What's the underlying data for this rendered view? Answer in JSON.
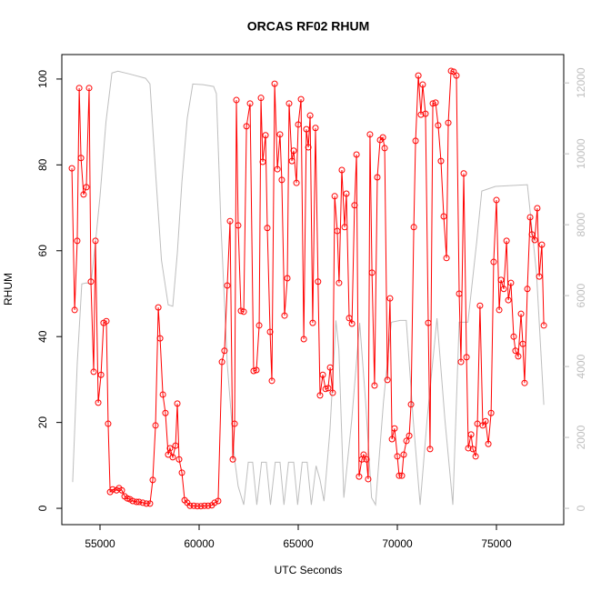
{
  "chart_data": {
    "type": "line",
    "title": "ORCAS RF02 RHUM",
    "xlabel": "UTC Seconds",
    "ylabel": "RHUM",
    "xlim": [
      53073,
      78394
    ],
    "ylim": [
      -3.8,
      105.7
    ],
    "y2lim": [
      -460,
      12800
    ],
    "xticks": [
      55000,
      60000,
      65000,
      70000,
      75000
    ],
    "yticks": [
      0,
      20,
      40,
      60,
      80,
      100
    ],
    "y2ticks": [
      0,
      2000,
      4000,
      6000,
      8000,
      10000,
      12000
    ],
    "series": [
      {
        "color": "#bebebe",
        "axis": "y2",
        "points": false,
        "x": [
          53620,
          53850,
          54080,
          54310,
          54540,
          54770,
          55000,
          55300,
          55600,
          55900,
          56500,
          57300,
          57520,
          57800,
          58100,
          58440,
          58670,
          58900,
          59130,
          59400,
          59680,
          60200,
          60730,
          60870,
          61100,
          61420,
          61790,
          61970,
          62250,
          62480,
          62700,
          62910,
          63150,
          63390,
          63600,
          63840,
          64080,
          64280,
          64510,
          64770,
          64970,
          65200,
          65450,
          65660,
          65900,
          66100,
          66300,
          66600,
          66900,
          67050,
          67300,
          67700,
          68100,
          68400,
          68700,
          68900,
          69300,
          69700,
          70140,
          70450,
          70800,
          71150,
          71500,
          72000,
          72400,
          72800,
          73120,
          73560,
          74000,
          74260,
          74950,
          76560,
          77020,
          77390
        ],
        "values": [
          740,
          4080,
          6330,
          6360,
          6330,
          7500,
          8800,
          10900,
          12280,
          12330,
          12250,
          12130,
          11970,
          9500,
          7000,
          5740,
          5700,
          7200,
          9200,
          11000,
          11970,
          11950,
          11900,
          11700,
          8000,
          4080,
          1380,
          620,
          100,
          1300,
          1300,
          100,
          1300,
          1300,
          100,
          1300,
          1300,
          100,
          1300,
          1300,
          100,
          1300,
          1300,
          100,
          1200,
          800,
          200,
          2200,
          5300,
          4500,
          300,
          2500,
          5230,
          3000,
          300,
          100,
          3000,
          5250,
          5300,
          5300,
          2500,
          100,
          2500,
          5360,
          2500,
          100,
          5250,
          5250,
          7500,
          8950,
          9080,
          9130,
          6640,
          2920
        ]
      },
      {
        "color": "#ff0000",
        "axis": "y",
        "points": true,
        "x": [
          53580,
          53720,
          53850,
          53950,
          54040,
          54170,
          54310,
          54450,
          54540,
          54680,
          54770,
          54910,
          55050,
          55180,
          55320,
          55410,
          55510,
          55640,
          55830,
          55960,
          56100,
          56240,
          56380,
          56510,
          56650,
          56840,
          56970,
          57160,
          57340,
          57520,
          57660,
          57800,
          57940,
          58030,
          58170,
          58300,
          58440,
          58530,
          58670,
          58810,
          58900,
          58990,
          59130,
          59270,
          59400,
          59540,
          59730,
          59910,
          60090,
          60270,
          60450,
          60640,
          60780,
          60960,
          61150,
          61280,
          61420,
          61560,
          61700,
          61790,
          61880,
          61970,
          62110,
          62250,
          62390,
          62570,
          62750,
          62890,
          63030,
          63120,
          63210,
          63350,
          63440,
          63580,
          63670,
          63810,
          63950,
          64080,
          64170,
          64310,
          64450,
          64540,
          64680,
          64770,
          64910,
          65000,
          65140,
          65280,
          65410,
          65510,
          65600,
          65730,
          65870,
          66000,
          66100,
          66240,
          66380,
          66510,
          66610,
          66740,
          66840,
          66970,
          67060,
          67200,
          67340,
          67430,
          67570,
          67710,
          67840,
          67940,
          68070,
          68210,
          68300,
          68440,
          68530,
          68620,
          68720,
          68850,
          68990,
          69130,
          69270,
          69360,
          69500,
          69630,
          69730,
          69860,
          70000,
          70090,
          70230,
          70320,
          70460,
          70600,
          70690,
          70830,
          70920,
          71060,
          71190,
          71280,
          71420,
          71560,
          71650,
          71790,
          71930,
          72060,
          72200,
          72340,
          72480,
          72570,
          72710,
          72840,
          72980,
          73120,
          73210,
          73350,
          73490,
          73580,
          73720,
          73810,
          73950,
          74040,
          74170,
          74310,
          74450,
          74590,
          74730,
          74860,
          75000,
          75140,
          75230,
          75370,
          75510,
          75600,
          75730,
          75870,
          75960,
          76100,
          76240,
          76330,
          76420,
          76560,
          76700,
          76790,
          76930,
          77060,
          77160,
          77290,
          77390
        ],
        "values": [
          79.2,
          46.2,
          62.3,
          97.9,
          81.6,
          73.1,
          74.8,
          97.9,
          52.8,
          31.8,
          62.3,
          24.6,
          31.1,
          43.2,
          43.6,
          19.7,
          3.8,
          4.4,
          4.2,
          4.7,
          4.2,
          2.8,
          2.3,
          2.1,
          1.7,
          1.5,
          1.5,
          1.3,
          1.1,
          1.1,
          6.6,
          19.3,
          46.8,
          39.6,
          26.5,
          22.2,
          12.5,
          14.0,
          11.9,
          14.6,
          24.4,
          11.4,
          8.3,
          1.9,
          1.3,
          0.6,
          0.6,
          0.5,
          0.5,
          0.6,
          0.6,
          0.7,
          1.3,
          1.7,
          34.1,
          36.7,
          51.9,
          66.9,
          11.4,
          19.7,
          95.1,
          65.9,
          46.0,
          45.8,
          89.0,
          94.3,
          32.0,
          32.2,
          42.6,
          95.6,
          80.7,
          86.9,
          65.3,
          41.1,
          29.7,
          98.9,
          79.0,
          87.1,
          76.5,
          44.9,
          53.6,
          94.3,
          80.9,
          83.3,
          75.8,
          89.4,
          95.3,
          39.4,
          88.3,
          84.1,
          91.5,
          43.2,
          88.6,
          52.8,
          26.3,
          31.1,
          27.8,
          28.0,
          32.8,
          26.9,
          72.7,
          64.6,
          52.5,
          78.8,
          65.5,
          73.3,
          44.3,
          43.0,
          70.6,
          82.4,
          7.4,
          11.4,
          12.5,
          11.4,
          6.8,
          87.1,
          54.9,
          28.6,
          77.1,
          85.8,
          86.4,
          83.9,
          29.9,
          48.9,
          16.1,
          18.6,
          12.1,
          7.6,
          7.6,
          12.5,
          15.7,
          16.9,
          24.2,
          65.5,
          85.6,
          100.8,
          91.7,
          98.7,
          91.9,
          43.2,
          13.8,
          94.3,
          94.5,
          89.2,
          80.9,
          68.0,
          58.3,
          89.8,
          101.9,
          101.7,
          100.8,
          50.0,
          34.1,
          78.0,
          35.2,
          14.0,
          17.2,
          13.8,
          12.1,
          19.7,
          47.2,
          19.3,
          20.3,
          15.0,
          22.2,
          57.4,
          71.8,
          46.2,
          53.2,
          51.1,
          62.3,
          48.5,
          52.5,
          40.0,
          36.7,
          35.4,
          45.3,
          38.3,
          29.2,
          51.1,
          67.8,
          63.8,
          62.5,
          69.9,
          54.0,
          61.4,
          42.6
        ]
      }
    ]
  }
}
